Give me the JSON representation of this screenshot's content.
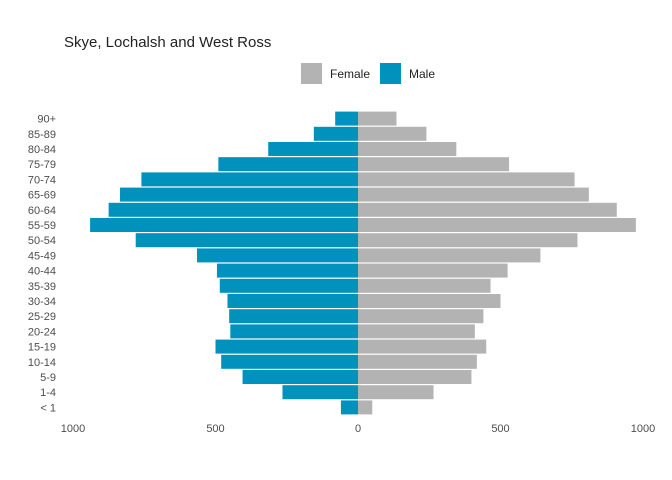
{
  "chart_data": {
    "type": "bar",
    "orientation": "horizontal",
    "layout": "population-pyramid",
    "title": "Skye, Lochalsh and West Ross",
    "xlabel": "",
    "ylabel": "",
    "xlim": [
      -1000,
      1000
    ],
    "x_ticks": [
      {
        "value": -1000,
        "label": "1000"
      },
      {
        "value": -500,
        "label": "500"
      },
      {
        "value": 0,
        "label": "0"
      },
      {
        "value": 500,
        "label": "500"
      },
      {
        "value": 1000,
        "label": "1000"
      }
    ],
    "grid": false,
    "legend_position": "top",
    "categories": [
      "< 1",
      "1-4",
      "5-9",
      "10-14",
      "15-19",
      "20-24",
      "25-29",
      "30-34",
      "35-39",
      "40-44",
      "45-49",
      "50-54",
      "55-59",
      "60-64",
      "65-69",
      "70-74",
      "75-79",
      "80-84",
      "85-89",
      "90+"
    ],
    "series": [
      {
        "name": "Female",
        "side": "right",
        "color": "#b3b3b3",
        "values": [
          50,
          265,
          398,
          417,
          450,
          410,
          440,
          500,
          465,
          525,
          640,
          770,
          975,
          908,
          810,
          760,
          530,
          345,
          240,
          135
        ]
      },
      {
        "name": "Male",
        "side": "left",
        "color": "#0091bd",
        "values": [
          60,
          265,
          405,
          480,
          500,
          448,
          452,
          458,
          485,
          495,
          565,
          780,
          940,
          875,
          835,
          760,
          490,
          315,
          155,
          80
        ]
      }
    ]
  }
}
